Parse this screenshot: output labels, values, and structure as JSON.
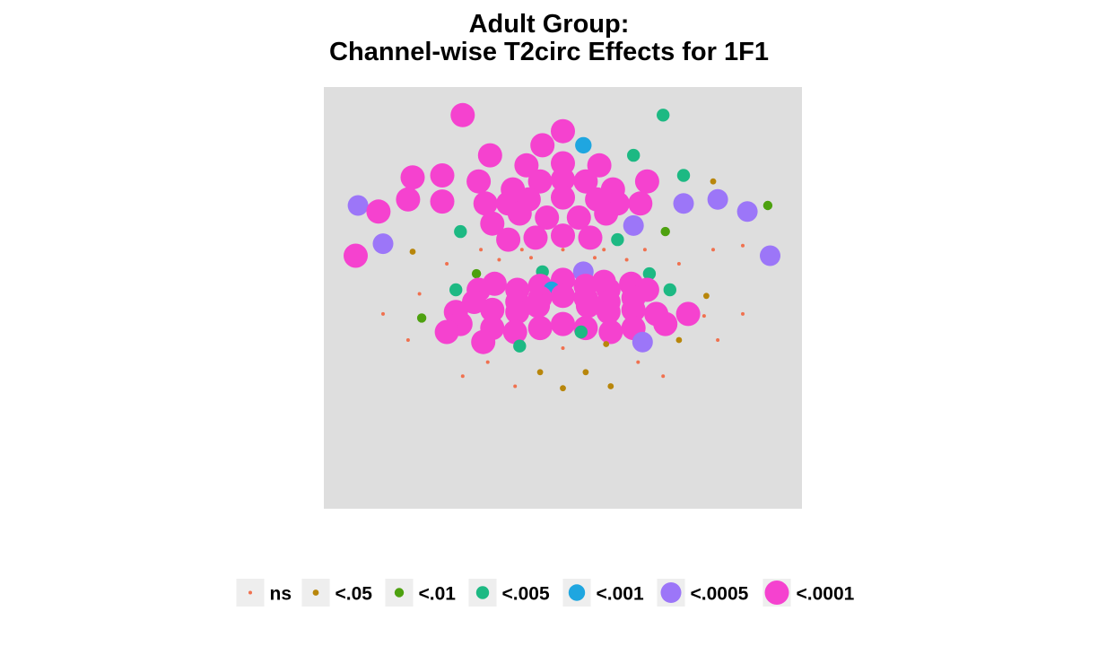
{
  "chart_data": {
    "type": "scatter",
    "title_line1": "Adult Group:",
    "title_line2": "Channel-wise T2circ Effects for 1F1",
    "xlabel": "",
    "ylabel": "",
    "grid": false,
    "legend_position": "bottom",
    "panel_background": "#dedede",
    "xlim": [
      -1.05,
      1.05
    ],
    "ylim": [
      -1.05,
      1.05
    ],
    "categories": [
      {
        "key": "ns",
        "label": "ns",
        "color": "#F0714F"
      },
      {
        "key": "p05",
        "label": "<.05",
        "color": "#B8860B"
      },
      {
        "key": "p01",
        "label": "<.01",
        "color": "#4DA10F"
      },
      {
        "key": "p005",
        "label": "<.005",
        "color": "#1DB983"
      },
      {
        "key": "p001",
        "label": "<.001",
        "color": "#1FA6E0"
      },
      {
        "key": "p0005",
        "label": "<.0005",
        "color": "#9C76F8"
      },
      {
        "key": "p0001",
        "label": "<.0001",
        "color": "#F542CF"
      }
    ],
    "points": [
      {
        "x": -0.46,
        "y": 0.91,
        "sig": "p0001"
      },
      {
        "x": 0.46,
        "y": 0.91,
        "sig": "p005"
      },
      {
        "x": 0.0,
        "y": 0.82,
        "sig": "p0001"
      },
      {
        "x": -0.09,
        "y": 0.75,
        "sig": "p0001"
      },
      {
        "x": 0.09,
        "y": 0.75,
        "sig": "p001"
      },
      {
        "x": -0.33,
        "y": 0.71,
        "sig": "p0001"
      },
      {
        "x": 0.33,
        "y": 0.71,
        "sig": "p005"
      },
      {
        "x": -0.17,
        "y": 0.66,
        "sig": "p0001"
      },
      {
        "x": 0.0,
        "y": 0.67,
        "sig": "p0001"
      },
      {
        "x": 0.17,
        "y": 0.66,
        "sig": "p0001"
      },
      {
        "x": -0.7,
        "y": 0.61,
        "sig": "p0001"
      },
      {
        "x": -0.57,
        "y": 0.62,
        "sig": "p0001"
      },
      {
        "x": -0.39,
        "y": 0.59,
        "sig": "p0001"
      },
      {
        "x": -0.1,
        "y": 0.59,
        "sig": "p0001"
      },
      {
        "x": 0.0,
        "y": 0.6,
        "sig": "p0001"
      },
      {
        "x": 0.1,
        "y": 0.59,
        "sig": "p0001"
      },
      {
        "x": 0.39,
        "y": 0.59,
        "sig": "p0001"
      },
      {
        "x": 0.56,
        "y": 0.62,
        "sig": "p005"
      },
      {
        "x": 0.69,
        "y": 0.6,
        "sig": "p05"
      },
      {
        "x": -0.23,
        "y": 0.55,
        "sig": "p0001"
      },
      {
        "x": 0.23,
        "y": 0.55,
        "sig": "p0001"
      },
      {
        "x": -0.71,
        "y": 0.5,
        "sig": "p0001"
      },
      {
        "x": -0.56,
        "y": 0.48,
        "sig": "p0001"
      },
      {
        "x": -0.36,
        "y": 0.47,
        "sig": "p0001"
      },
      {
        "x": -0.25,
        "y": 0.47,
        "sig": "p0001"
      },
      {
        "x": -0.15,
        "y": 0.5,
        "sig": "p0001"
      },
      {
        "x": 0.0,
        "y": 0.51,
        "sig": "p0001"
      },
      {
        "x": 0.15,
        "y": 0.5,
        "sig": "p0001"
      },
      {
        "x": 0.25,
        "y": 0.47,
        "sig": "p0001"
      },
      {
        "x": 0.36,
        "y": 0.47,
        "sig": "p0001"
      },
      {
        "x": 0.56,
        "y": 0.48,
        "sig": "p0005"
      },
      {
        "x": 0.72,
        "y": 0.52,
        "sig": "p0005"
      },
      {
        "x": 0.95,
        "y": 0.49,
        "sig": "p01"
      },
      {
        "x": -0.95,
        "y": 0.47,
        "sig": "p0005"
      },
      {
        "x": -0.86,
        "y": 0.43,
        "sig": "p0001"
      },
      {
        "x": -0.2,
        "y": 0.43,
        "sig": "p0001"
      },
      {
        "x": -0.07,
        "y": 0.41,
        "sig": "p0001"
      },
      {
        "x": 0.07,
        "y": 0.41,
        "sig": "p0001"
      },
      {
        "x": 0.2,
        "y": 0.41,
        "sig": "p0001"
      },
      {
        "x": 0.86,
        "y": 0.43,
        "sig": "p0005"
      },
      {
        "x": -0.32,
        "y": 0.37,
        "sig": "p0001"
      },
      {
        "x": 0.32,
        "y": 0.37,
        "sig": "p0005"
      },
      {
        "x": -0.47,
        "y": 0.33,
        "sig": "p005"
      },
      {
        "x": 0.47,
        "y": 0.33,
        "sig": "p01"
      },
      {
        "x": -0.83,
        "y": 0.28,
        "sig": "p0005"
      },
      {
        "x": -0.25,
        "y": 0.29,
        "sig": "p0001"
      },
      {
        "x": -0.12,
        "y": 0.3,
        "sig": "p0001"
      },
      {
        "x": 0.0,
        "y": 0.31,
        "sig": "p0001"
      },
      {
        "x": 0.12,
        "y": 0.29,
        "sig": "p0001"
      },
      {
        "x": 0.25,
        "y": 0.27,
        "sig": "p005"
      },
      {
        "x": 0.83,
        "y": 0.28,
        "sig": "p0005"
      },
      {
        "x": -0.69,
        "y": 0.19,
        "sig": "p05"
      },
      {
        "x": -0.38,
        "y": 0.21,
        "sig": "p0"
      },
      {
        "x": 0.38,
        "y": 0.21,
        "sig": "p0"
      },
      {
        "x": 0.69,
        "y": 0.19,
        "sig": "p0"
      }
    ]
  },
  "legend": {
    "items": [
      "ns",
      "<.05",
      "<.01",
      "<.005",
      "<.001",
      "<.0005",
      "<.0001"
    ]
  }
}
